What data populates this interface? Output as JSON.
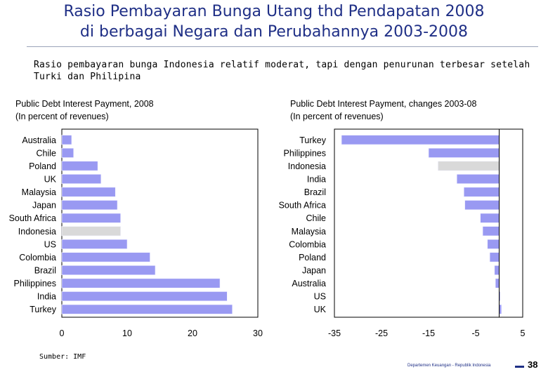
{
  "header": {
    "title_line1": "Rasio Pembayaran Bunga Utang thd Pendapatan 2008",
    "title_line2": "di berbagai Negara dan Perubahannya 2003-2008",
    "subtitle_line1": "Rasio pembayaran bunga Indonesia relatif moderat, tapi dengan penurunan terbesar setelah",
    "subtitle_line2": "Turki dan Philipina"
  },
  "chart_data": [
    {
      "type": "bar",
      "orientation": "horizontal",
      "title": "Public Debt Interest Payment, 2008",
      "subtitle": "(In percent of revenues)",
      "categories": [
        "Australia",
        "Chile",
        "Poland",
        "UK",
        "Malaysia",
        "Japan",
        "South Africa",
        "Indonesia",
        "US",
        "Colombia",
        "Brazil",
        "Philippines",
        "India",
        "Turkey"
      ],
      "values": [
        1.5,
        1.8,
        5.5,
        6.0,
        8.2,
        8.5,
        9.0,
        9.0,
        10.0,
        13.5,
        14.3,
        24.2,
        25.3,
        26.1
      ],
      "highlight": "Indonesia",
      "xlim": [
        0,
        30
      ],
      "xticks": [
        0,
        10,
        20,
        30
      ],
      "colors": {
        "bar": "#9999f2",
        "highlight": "#d9d9d9"
      },
      "grid": false
    },
    {
      "type": "bar",
      "orientation": "horizontal",
      "title": "Public Debt Interest Payment, changes 2003-08",
      "subtitle": "(In percent of revenues)",
      "categories": [
        "Turkey",
        "Philippines",
        "Indonesia",
        "India",
        "Brazil",
        "South Africa",
        "Chile",
        "Malaysia",
        "Colombia",
        "Poland",
        "Japan",
        "Australia",
        "US",
        "UK"
      ],
      "values": [
        -33.5,
        -15.0,
        -13.0,
        -9.0,
        -7.5,
        -7.3,
        -4.0,
        -3.5,
        -2.5,
        -2.0,
        -1.0,
        -0.8,
        0.0,
        0.5
      ],
      "highlight": "Indonesia",
      "xlim": [
        -35,
        5
      ],
      "xticks": [
        -35,
        -25,
        -15,
        -5,
        5
      ],
      "colors": {
        "bar": "#9999f2",
        "highlight": "#d9d9d9"
      },
      "grid": false
    }
  ],
  "footer": {
    "source": "Sumber: IMF",
    "org": "Departemen Keuangan - Republik Indonesia",
    "page": "38"
  }
}
